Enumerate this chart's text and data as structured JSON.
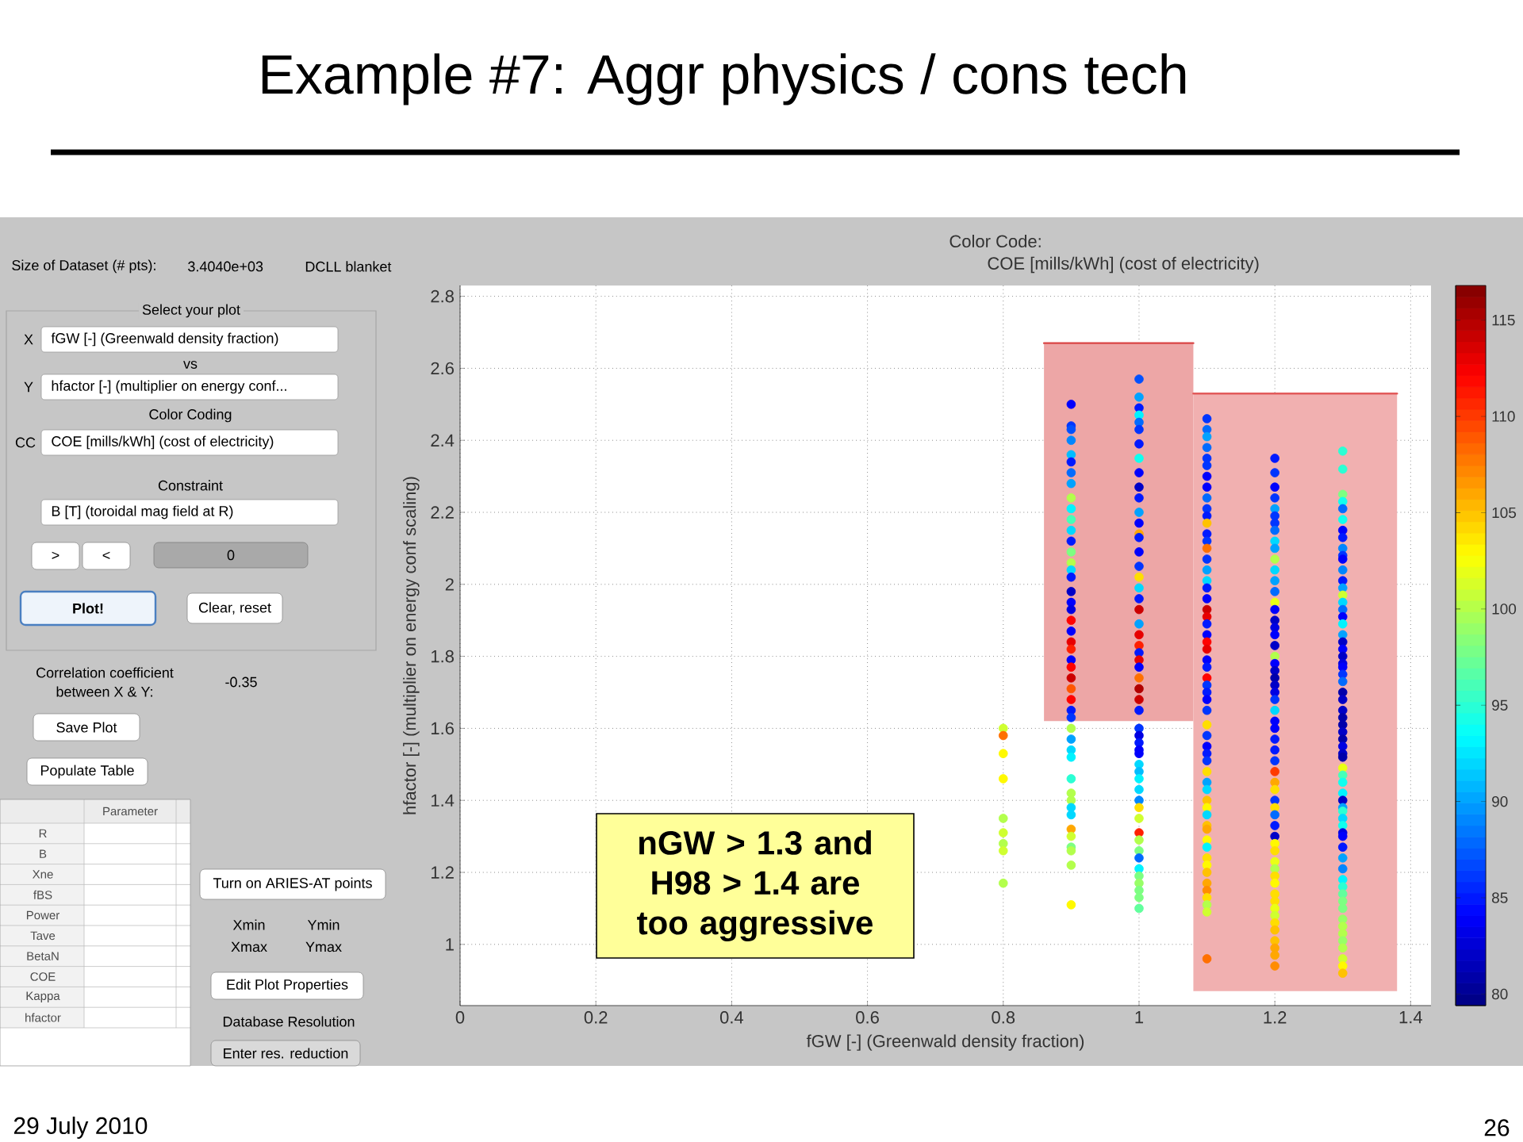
{
  "chart_data": [
    {
      "type": "scatter",
      "title": "Example #7: Aggr physics / cons tech",
      "subtitle": "Color Code:",
      "clabel": "COE [mills/kWh] (cost of electricity)",
      "xlabel": "fGW [-] (Greenwald density fraction)",
      "ylabel": "hfactor [-] (multiplier on energy conf scaling)",
      "annotations": [
        "nGW > 1.3 and H98 > 1.4 are too aggressive",
        "29 July 2010",
        "26"
      ],
      "xlim": [
        0,
        1.43
      ],
      "ylim": [
        0.83,
        2.83
      ],
      "xticks": [
        0,
        0.2,
        0.4,
        0.6,
        0.8,
        1,
        1.2,
        1.4
      ],
      "yticks": [
        1,
        1.2,
        1.4,
        1.6,
        1.8,
        2,
        2.2,
        2.4,
        2.6,
        2.8
      ],
      "clim": [
        79.4,
        116.8
      ],
      "cticks": [
        80,
        85,
        90,
        95,
        100,
        105,
        110,
        115
      ],
      "grid": true,
      "series": [
        {
          "type": "line",
          "color": "#d94545",
          "x": [
            0.86,
            1.08
          ],
          "values": [
            2.67,
            2.67
          ],
          "lower": [
            1.62,
            1.62
          ],
          "upper": [
            2.67,
            2.67
          ]
        },
        {
          "type": "line",
          "color": "#e25b5b",
          "x": [
            1.08,
            1.38
          ],
          "values": [
            2.53,
            2.53
          ],
          "lower": [
            0.87,
            0.87
          ],
          "upper": [
            2.53,
            2.53
          ]
        },
        {
          "type": "scatter",
          "marker": "circle",
          "x": [
            0.8,
            0.8,
            0.8,
            0.8,
            0.8,
            0.8,
            0.8,
            0.8,
            0.8
          ],
          "values": [
            1.6,
            1.58,
            1.53,
            1.46,
            1.35,
            1.31,
            1.28,
            1.26,
            1.17
          ],
          "cvalues": [
            101,
            108,
            103,
            103,
            100,
            101,
            100,
            101,
            100
          ],
          "colors": [
            "#cfff30",
            "#ff7000",
            "#fff900",
            "#fff900",
            "#b3ff4c",
            "#cfff30",
            "#b3ff4c",
            "#cfff30",
            "#b3ff4c"
          ]
        },
        {
          "type": "scatter",
          "marker": "circle",
          "x": [
            0.9,
            0.9,
            0.9,
            0.9,
            0.9,
            0.9,
            0.9,
            0.9,
            0.9,
            0.9,
            0.9,
            0.9,
            0.9,
            0.9,
            0.9,
            0.9,
            0.9,
            0.9,
            0.9,
            0.9,
            0.9,
            0.9,
            0.9,
            0.9,
            0.9,
            0.9,
            0.9,
            0.9,
            0.9,
            0.9,
            0.9,
            0.9,
            0.9,
            0.9,
            0.9,
            0.9,
            0.9,
            0.9,
            0.9,
            0.9,
            0.9,
            0.9,
            0.9,
            0.9,
            0.9,
            0.9
          ],
          "values": [
            2.5,
            2.44,
            2.43,
            2.4,
            2.36,
            2.34,
            2.31,
            2.28,
            2.24,
            2.21,
            2.18,
            2.15,
            2.12,
            2.09,
            2.06,
            2.04,
            2.02,
            1.98,
            1.95,
            1.93,
            1.9,
            1.87,
            1.84,
            1.82,
            1.79,
            1.77,
            1.74,
            1.71,
            1.68,
            1.65,
            1.63,
            1.6,
            1.57,
            1.54,
            1.52,
            1.46,
            1.42,
            1.4,
            1.38,
            1.36,
            1.32,
            1.3,
            1.27,
            1.26,
            1.22,
            1.11
          ],
          "cvalues": [
            84,
            86,
            87,
            89,
            91,
            85,
            88,
            90,
            100,
            93,
            96,
            92,
            85,
            98,
            100,
            92,
            85,
            82,
            84,
            83,
            112,
            84,
            113,
            111,
            84,
            112,
            114,
            109,
            112,
            85,
            86,
            100,
            90,
            92,
            93,
            95,
            100,
            100,
            92,
            92,
            106,
            101,
            98,
            100,
            100,
            103
          ],
          "colors": [
            "#0000fd",
            "#0035ff",
            "#0050ff",
            "#0086ff",
            "#00bdff",
            "#0019ff",
            "#006bff",
            "#00a2ff",
            "#b3ff4c",
            "#00f3ff",
            "#46ffb9",
            "#00d8ff",
            "#0019ff",
            "#7dff82",
            "#b3ff4c",
            "#00d8ff",
            "#0019ff",
            "#0000c7",
            "#0000fd",
            "#0000e2",
            "#ff0300",
            "#0000fd",
            "#e70000",
            "#ff1f00",
            "#0000fd",
            "#ff0300",
            "#cc0000",
            "#ff5500",
            "#ff0300",
            "#0019ff",
            "#0035ff",
            "#b3ff4c",
            "#00a2ff",
            "#00d8ff",
            "#00f3ff",
            "#2bffd4",
            "#b3ff4c",
            "#b3ff4c",
            "#00d8ff",
            "#00d8ff",
            "#ffa700",
            "#cfff30",
            "#7dff82",
            "#b3ff4c",
            "#b3ff4c",
            "#fff900"
          ]
        },
        {
          "type": "scatter",
          "marker": "circle",
          "x": [
            1,
            1,
            1,
            1,
            1,
            1,
            1,
            1,
            1,
            1,
            1,
            1,
            1,
            1,
            1,
            1,
            1,
            1,
            1,
            1,
            1,
            1,
            1,
            1,
            1,
            1,
            1,
            1,
            1,
            1,
            1,
            1,
            1,
            1,
            1,
            1,
            1,
            1,
            1,
            1,
            1,
            1,
            1,
            1,
            1,
            1,
            1,
            1,
            1,
            1,
            1,
            1,
            1
          ],
          "values": [
            2.57,
            2.52,
            2.49,
            2.47,
            2.45,
            2.43,
            2.39,
            2.35,
            2.31,
            2.27,
            2.24,
            2.2,
            2.17,
            2.14,
            2.13,
            2.09,
            2.05,
            2.02,
            1.99,
            1.96,
            1.93,
            1.89,
            1.86,
            1.83,
            1.81,
            1.79,
            1.77,
            1.74,
            1.71,
            1.68,
            1.65,
            1.6,
            1.58,
            1.56,
            1.54,
            1.53,
            1.5,
            1.48,
            1.46,
            1.43,
            1.4,
            1.38,
            1.35,
            1.31,
            1.29,
            1.26,
            1.24,
            1.21,
            1.19,
            1.17,
            1.15,
            1.13,
            1.1
          ],
          "cvalues": [
            87,
            90,
            85,
            93,
            88,
            86,
            85,
            94,
            84,
            82,
            85,
            90,
            84,
            106,
            85,
            84,
            86,
            104,
            92,
            85,
            114,
            90,
            113,
            111,
            85,
            113,
            84,
            108,
            115,
            114,
            85,
            86,
            83,
            85,
            84,
            84,
            92,
            91,
            93,
            92,
            89,
            104,
            101,
            111,
            100,
            98,
            88,
            93,
            98,
            99,
            98,
            98,
            97
          ],
          "colors": [
            "#0050ff",
            "#00a2ff",
            "#0019ff",
            "#00f3ff",
            "#006bff",
            "#0035ff",
            "#0019ff",
            "#10ffef",
            "#0000fd",
            "#0000c7",
            "#0019ff",
            "#00a2ff",
            "#0000fd",
            "#ffa700",
            "#0019ff",
            "#0000fd",
            "#0035ff",
            "#ffde00",
            "#00d8ff",
            "#0019ff",
            "#cc0000",
            "#00a2ff",
            "#e70000",
            "#ff1f00",
            "#0019ff",
            "#e70000",
            "#0000fd",
            "#ff7000",
            "#b10000",
            "#cc0000",
            "#0019ff",
            "#0035ff",
            "#0000e2",
            "#0019ff",
            "#0000fd",
            "#0000fd",
            "#00d8ff",
            "#00bdff",
            "#00f3ff",
            "#00d8ff",
            "#0086ff",
            "#ffde00",
            "#cfff30",
            "#ff1f00",
            "#b3ff4c",
            "#7dff82",
            "#006bff",
            "#00f3ff",
            "#7dff82",
            "#98ff67",
            "#7dff82",
            "#7dff82",
            "#62ff9d"
          ]
        },
        {
          "type": "scatter",
          "marker": "circle",
          "x": [
            1.1,
            1.1,
            1.1,
            1.1,
            1.1,
            1.1,
            1.1,
            1.1,
            1.1,
            1.1,
            1.1,
            1.1,
            1.1,
            1.1,
            1.1,
            1.1,
            1.1,
            1.1,
            1.1,
            1.1,
            1.1,
            1.1,
            1.1,
            1.1,
            1.1,
            1.1,
            1.1,
            1.1,
            1.1,
            1.1,
            1.1,
            1.1,
            1.1,
            1.1,
            1.1,
            1.1,
            1.1,
            1.1,
            1.1,
            1.1,
            1.1,
            1.1,
            1.1,
            1.1,
            1.1,
            1.1,
            1.1,
            1.1,
            1.1,
            1.1,
            1.1,
            1.1,
            1.1,
            1.1,
            1.1,
            1.1,
            1.1
          ],
          "values": [
            2.46,
            2.43,
            2.41,
            2.38,
            2.35,
            2.33,
            2.3,
            2.27,
            2.24,
            2.21,
            2.19,
            2.17,
            2.14,
            2.12,
            2.1,
            2.07,
            2.04,
            2.01,
            1.99,
            1.96,
            1.93,
            1.91,
            1.89,
            1.86,
            1.84,
            1.82,
            1.79,
            1.77,
            1.74,
            1.72,
            1.7,
            1.68,
            1.65,
            1.61,
            1.58,
            1.55,
            1.53,
            1.51,
            1.48,
            1.45,
            1.43,
            1.4,
            1.38,
            1.36,
            1.33,
            1.32,
            1.29,
            1.27,
            1.24,
            1.22,
            1.2,
            1.17,
            1.15,
            1.13,
            1.11,
            1.09,
            0.96
          ],
          "cvalues": [
            86,
            88,
            90,
            88,
            86,
            86,
            84,
            84,
            88,
            86,
            85,
            105,
            85,
            86,
            108,
            86,
            90,
            92,
            85,
            84,
            114,
            113,
            85,
            84,
            112,
            113,
            84,
            85,
            112,
            86,
            85,
            84,
            86,
            104,
            86,
            84,
            85,
            86,
            104,
            90,
            92,
            105,
            103,
            92,
            105,
            106,
            103,
            93,
            104,
            103,
            105,
            106,
            107,
            104,
            100,
            101,
            108
          ],
          "colors": [
            "#0035ff",
            "#006bff",
            "#00a2ff",
            "#006bff",
            "#0035ff",
            "#0035ff",
            "#0000fd",
            "#0000fd",
            "#006bff",
            "#0035ff",
            "#0019ff",
            "#ffc200",
            "#0019ff",
            "#0035ff",
            "#ff7000",
            "#0035ff",
            "#00a2ff",
            "#00d8ff",
            "#0019ff",
            "#0000fd",
            "#cc0000",
            "#e70000",
            "#0019ff",
            "#0000fd",
            "#ff0300",
            "#e70000",
            "#0000fd",
            "#0019ff",
            "#ff0300",
            "#0035ff",
            "#0019ff",
            "#0000fd",
            "#0035ff",
            "#ffde00",
            "#0035ff",
            "#0000fd",
            "#0019ff",
            "#0035ff",
            "#ffde00",
            "#00a2ff",
            "#00d8ff",
            "#ffc200",
            "#fff900",
            "#00d8ff",
            "#ffc200",
            "#ffa700",
            "#fff900",
            "#00f3ff",
            "#ffde00",
            "#fff900",
            "#ffc200",
            "#ffa700",
            "#ff8c00",
            "#ffde00",
            "#b3ff4c",
            "#cfff30",
            "#ff7000"
          ]
        },
        {
          "type": "scatter",
          "marker": "circle",
          "x": [
            1.2,
            1.2,
            1.2,
            1.2,
            1.2,
            1.2,
            1.2,
            1.2,
            1.2,
            1.2,
            1.2,
            1.2,
            1.2,
            1.2,
            1.2,
            1.2,
            1.2,
            1.2,
            1.2,
            1.2,
            1.2,
            1.2,
            1.2,
            1.2,
            1.2,
            1.2,
            1.2,
            1.2,
            1.2,
            1.2,
            1.2,
            1.2,
            1.2,
            1.2,
            1.2,
            1.2,
            1.2,
            1.2,
            1.2,
            1.2,
            1.2,
            1.2,
            1.2,
            1.2,
            1.2,
            1.2,
            1.2,
            1.2,
            1.2,
            1.2,
            1.2,
            1.2,
            1.2,
            1.2,
            1.2,
            1.2,
            1.2
          ],
          "values": [
            2.35,
            2.31,
            2.27,
            2.24,
            2.21,
            2.19,
            2.17,
            2.15,
            2.12,
            2.1,
            2.07,
            2.04,
            2.01,
            1.98,
            1.95,
            1.93,
            1.9,
            1.88,
            1.86,
            1.83,
            1.8,
            1.78,
            1.76,
            1.74,
            1.72,
            1.7,
            1.68,
            1.65,
            1.62,
            1.6,
            1.57,
            1.54,
            1.51,
            1.48,
            1.45,
            1.43,
            1.4,
            1.38,
            1.36,
            1.33,
            1.3,
            1.28,
            1.26,
            1.23,
            1.21,
            1.19,
            1.17,
            1.14,
            1.12,
            1.1,
            1.08,
            1.06,
            1.04,
            1.01,
            0.99,
            0.97,
            0.94
          ],
          "cvalues": [
            85,
            86,
            84,
            86,
            90,
            86,
            86,
            88,
            92,
            90,
            100,
            92,
            90,
            88,
            102,
            84,
            82,
            83,
            84,
            82,
            100,
            84,
            82,
            81,
            82,
            83,
            86,
            92,
            84,
            84,
            85,
            85,
            86,
            110,
            106,
            104,
            86,
            104,
            88,
            85,
            82,
            103,
            104,
            102,
            100,
            104,
            103,
            104,
            104,
            102,
            101,
            104,
            105,
            105,
            106,
            106,
            107
          ],
          "colors": [
            "#0019ff",
            "#0035ff",
            "#0000fd",
            "#0035ff",
            "#00a2ff",
            "#0035ff",
            "#0035ff",
            "#006bff",
            "#00d8ff",
            "#00a2ff",
            "#b3ff4c",
            "#00d8ff",
            "#00a2ff",
            "#006bff",
            "#eaff15",
            "#0000fd",
            "#0000c7",
            "#0000e2",
            "#0000fd",
            "#0000c7",
            "#b3ff4c",
            "#0000fd",
            "#0000c7",
            "#0000ab",
            "#0000c7",
            "#0000e2",
            "#0035ff",
            "#00d8ff",
            "#0000fd",
            "#0000fd",
            "#0019ff",
            "#0019ff",
            "#0035ff",
            "#ff3a00",
            "#ffa700",
            "#ffde00",
            "#0035ff",
            "#ffde00",
            "#006bff",
            "#0019ff",
            "#0000c7",
            "#fff900",
            "#ffde00",
            "#eaff15",
            "#b3ff4c",
            "#ffde00",
            "#fff900",
            "#ffde00",
            "#ffde00",
            "#eaff15",
            "#cfff30",
            "#ffde00",
            "#ffc200",
            "#ffc200",
            "#ffa700",
            "#ffa700",
            "#ff8c00"
          ]
        },
        {
          "type": "scatter",
          "marker": "circle",
          "x": [
            1.3,
            1.3,
            1.3,
            1.3,
            1.3,
            1.3,
            1.3,
            1.3,
            1.3,
            1.3,
            1.3,
            1.3,
            1.3,
            1.3,
            1.3,
            1.3,
            1.3,
            1.3,
            1.3,
            1.3,
            1.3,
            1.3,
            1.3,
            1.3,
            1.3,
            1.3,
            1.3,
            1.3,
            1.3,
            1.3,
            1.3,
            1.3,
            1.3,
            1.3,
            1.3,
            1.3,
            1.3,
            1.3,
            1.3,
            1.3,
            1.3,
            1.3,
            1.3,
            1.3,
            1.3,
            1.3,
            1.3,
            1.3,
            1.3,
            1.3,
            1.3,
            1.3,
            1.3,
            1.3,
            1.3,
            1.3,
            1.3,
            1.3,
            1.3,
            1.3,
            1.3,
            1.3,
            1.3,
            1.3
          ],
          "values": [
            2.37,
            2.32,
            2.25,
            2.23,
            2.21,
            2.18,
            2.15,
            2.13,
            2.1,
            2.08,
            2.07,
            2.04,
            2.01,
            1.99,
            1.97,
            1.95,
            1.93,
            1.91,
            1.89,
            1.86,
            1.84,
            1.82,
            1.8,
            1.78,
            1.77,
            1.75,
            1.73,
            1.7,
            1.68,
            1.65,
            1.63,
            1.61,
            1.59,
            1.57,
            1.55,
            1.53,
            1.52,
            1.49,
            1.47,
            1.45,
            1.42,
            1.4,
            1.38,
            1.37,
            1.35,
            1.33,
            1.31,
            1.3,
            1.27,
            1.24,
            1.21,
            1.18,
            1.16,
            1.14,
            1.12,
            1.1,
            1.07,
            1.05,
            1.03,
            1.01,
            0.99,
            0.96,
            0.94,
            0.92
          ],
          "cvalues": [
            95,
            95,
            98,
            94,
            88,
            94,
            84,
            85,
            89,
            86,
            84,
            89,
            85,
            90,
            101,
            92,
            88,
            84,
            93,
            90,
            82,
            84,
            82,
            83,
            84,
            86,
            88,
            81,
            82,
            82,
            81,
            81,
            82,
            81,
            83,
            82,
            81,
            102,
            96,
            94,
            93,
            82,
            90,
            95,
            92,
            94,
            83,
            84,
            85,
            90,
            89,
            93,
            95,
            97,
            98,
            98,
            99,
            100,
            100,
            99,
            100,
            101,
            103,
            105
          ],
          "colors": [
            "#2bffd4",
            "#2bffd4",
            "#7dff82",
            "#10ffef",
            "#006bff",
            "#10ffef",
            "#0000fd",
            "#0019ff",
            "#0086ff",
            "#0035ff",
            "#0000fd",
            "#0086ff",
            "#0019ff",
            "#00a2ff",
            "#cfff30",
            "#00d8ff",
            "#006bff",
            "#0000fd",
            "#00f3ff",
            "#00a2ff",
            "#0000c7",
            "#0000fd",
            "#0000c7",
            "#0000e2",
            "#0000fd",
            "#0035ff",
            "#006bff",
            "#0000ab",
            "#0000c7",
            "#0000c7",
            "#0000ab",
            "#0000ab",
            "#0000c7",
            "#0000ab",
            "#0000e2",
            "#0000c7",
            "#0000ab",
            "#eaff15",
            "#46ffb9",
            "#10ffef",
            "#00f3ff",
            "#0000c7",
            "#00a2ff",
            "#2bffd4",
            "#00d8ff",
            "#10ffef",
            "#0000e2",
            "#0000fd",
            "#0019ff",
            "#00a2ff",
            "#0086ff",
            "#00f3ff",
            "#2bffd4",
            "#62ff9d",
            "#7dff82",
            "#7dff82",
            "#98ff67",
            "#b3ff4c",
            "#b3ff4c",
            "#98ff67",
            "#b3ff4c",
            "#cfff30",
            "#fff900",
            "#ffc200"
          ]
        }
      ]
    },
    {
      "type": "other",
      "annotations": [
        "Size of Dataset (# pts):",
        "3.4040e+03",
        "DCLL blanket",
        "Select your plot",
        "X",
        "fGW [-] (Greenwald density fraction)",
        "vs",
        "Y",
        "hfactor [-] (multiplier on energy conf...",
        "Color Coding",
        "CC",
        "COE [mills/kWh] (cost of electricity)",
        "Constraint",
        "B [T] (toroidal mag field at R)",
        ">",
        "<",
        "0",
        "Plot!",
        "Clear, reset",
        "Correlation coefficient",
        "between X & Y:",
        "-0.35",
        "Save Plot",
        "Populate Table",
        "Parameter",
        "R",
        "B",
        "Xne",
        "fBS",
        "Power",
        "Tave",
        "BetaN",
        "COE",
        "Kappa",
        "hfactor",
        "Turn on ARIES-AT points",
        "Xmin",
        "Ymin",
        "Xmax",
        "Ymax",
        "Edit Plot Properties",
        "Database Resolution",
        "Enter res. reduction"
      ]
    }
  ]
}
